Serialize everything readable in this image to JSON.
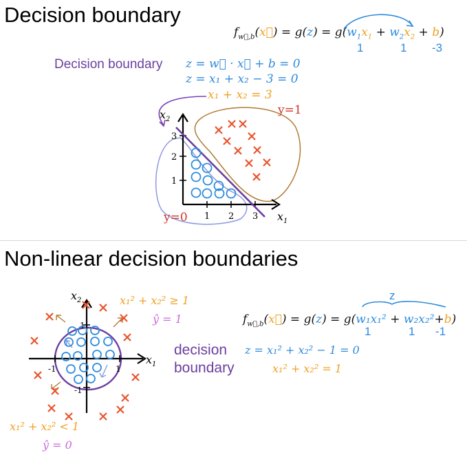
{
  "top": {
    "title": "Decision boundary",
    "formula": {
      "lhs": "f",
      "sub": "w⃗,b",
      "arg": "x⃗",
      "eq1": "= g(",
      "z": "z",
      "eq2": ") = g(",
      "w1": "w",
      "w1sub": "1",
      "x1": "x",
      "x1sub": "1",
      "plus1": " + ",
      "w2": "w",
      "w2sub": "2",
      "x2": "x",
      "x2sub": "2",
      "plus2": " + ",
      "b": "b",
      "close": ")",
      "val_w1": "1",
      "val_w2": "1",
      "val_b": "-3"
    },
    "boundary_label": "Decision boundary",
    "eq_line1": "z = w⃗ · x⃗ + b = 0",
    "eq_line2": "z = x₁ + x₂ − 3 = 0",
    "eq_line3": "x₁ + x₂ = 3",
    "y1_label": "y=1",
    "y0_label": "y=0",
    "axis_x": "x",
    "axis_x_sub": "1",
    "axis_y": "x",
    "axis_y_sub": "2",
    "ticks_x": [
      "1",
      "2",
      "3"
    ],
    "ticks_y": [
      "1",
      "2",
      "3"
    ]
  },
  "bottom": {
    "title": "Non-linear decision boundaries",
    "ineq_top": "x₁² + x₂² ≥ 1",
    "yhat_top": "ŷ = 1",
    "formula": {
      "lhs": "f",
      "sub": "w⃗,b",
      "arg": "x⃗",
      "eq1": "= g(",
      "z": "z",
      "eq2": ") = g(",
      "term1": "w₁x₁²",
      "plus1": " + ",
      "term2": "w₂x₂²",
      "plus2": "+",
      "b": "b",
      "close": ")",
      "brace_label": "z",
      "val_w1": "1",
      "val_w2": "1",
      "val_b": "-1"
    },
    "boundary_label_1": "decision",
    "boundary_label_2": "boundary",
    "eq_line1": "z = x₁² + x₂² − 1 = 0",
    "eq_line2": "x₁² + x₂² = 1",
    "ineq_bottom": "x₁² + x₂² < 1",
    "yhat_bottom": "ŷ = 0",
    "axis_x": "x",
    "axis_x_sub": "1",
    "axis_y": "x",
    "axis_y_sub": "2",
    "ticks": [
      "1",
      "-1",
      "1",
      "-1"
    ]
  },
  "colors": {
    "purple": "#6b3fa0",
    "blue": "#2e8bdb",
    "orange": "#f0a020",
    "red": "#e8542c",
    "brown": "#b07a30",
    "lavender": "#8a9ae0"
  }
}
